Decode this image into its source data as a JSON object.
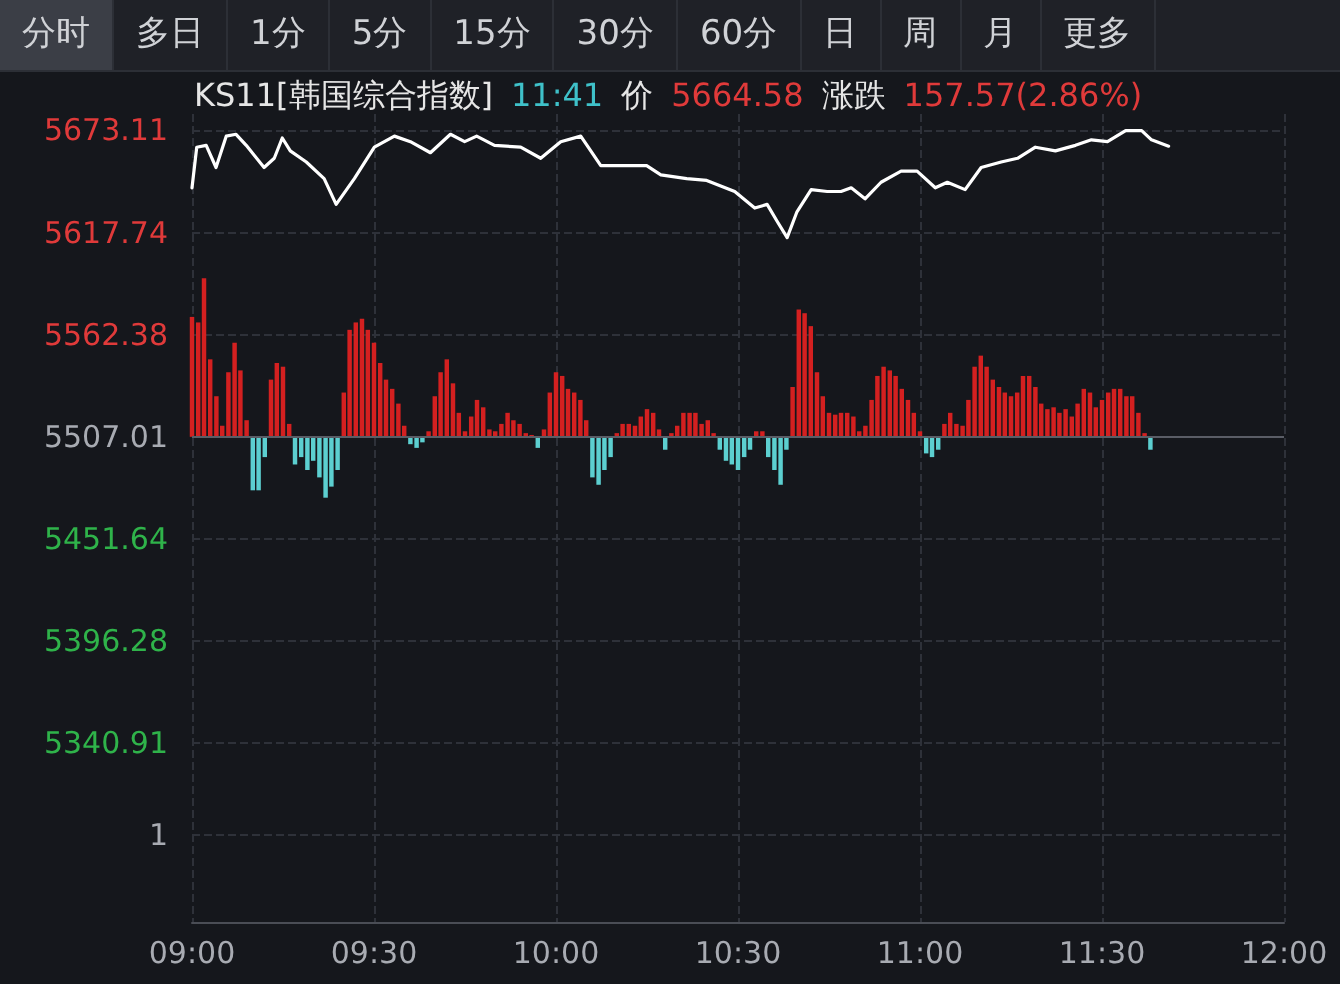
{
  "chart_data": {
    "type": "line",
    "title": "KS11[韩国综合指数]",
    "annotations": [
      "1",
      "分时",
      "多日",
      "1分",
      "5分",
      "15分",
      "30分",
      "60分",
      "日",
      "周",
      "月",
      "更多",
      "11:41",
      "价",
      "5664.58",
      "涨跌",
      "157.57(2.86%)"
    ],
    "xlim": [
      9,
      12
    ],
    "xticks": [
      {
        "value": 9,
        "label": "09:00"
      },
      {
        "value": 9.5,
        "label": "09:30"
      },
      {
        "value": 10,
        "label": "10:00"
      },
      {
        "value": 10.5,
        "label": "10:30"
      },
      {
        "value": 11,
        "label": "11:00"
      },
      {
        "value": 11.5,
        "label": "11:30"
      },
      {
        "value": 12,
        "label": "12:00"
      }
    ],
    "ylim": [
      5244,
      5682
    ],
    "yticks": [
      {
        "value": 5291,
        "label": null
      },
      5340.91,
      5396.28,
      5451.64,
      5507.01,
      5562.38,
      5617.74,
      5673.11
    ],
    "grid": true,
    "ref_lines": [
      {
        "axis": "y",
        "value": 5507.01,
        "color": "#5a5d66"
      }
    ],
    "series": [
      {
        "color": "#ffffff",
        "x": [
          9.0,
          9.013,
          9.039,
          9.066,
          9.094,
          9.121,
          9.149,
          9.198,
          9.226,
          9.248,
          9.27,
          9.314,
          9.363,
          9.396,
          9.446,
          9.501,
          9.556,
          9.6,
          9.655,
          9.71,
          9.749,
          9.782,
          9.831,
          9.903,
          9.958,
          10.013,
          10.068,
          10.123,
          10.194,
          10.249,
          10.288,
          10.359,
          10.414,
          10.491,
          10.546,
          10.58,
          10.607,
          10.635,
          10.662,
          10.701,
          10.745,
          10.783,
          10.811,
          10.849,
          10.893,
          10.948,
          10.992,
          11.042,
          11.075,
          11.124,
          11.168,
          11.223,
          11.268,
          11.317,
          11.372,
          11.427,
          11.471,
          11.515,
          11.565,
          11.609,
          11.636,
          11.683
        ],
        "values": [
          5642,
          5664,
          5665,
          5653,
          5670,
          5671,
          5665,
          5653,
          5658,
          5669,
          5662,
          5656,
          5647,
          5633,
          5647,
          5664,
          5670,
          5667,
          5661,
          5671,
          5667,
          5670,
          5665,
          5664,
          5658,
          5667,
          5670,
          5654,
          5654,
          5654,
          5649,
          5647,
          5646,
          5640,
          5631,
          5633,
          5624,
          5615,
          5629,
          5641,
          5640,
          5640,
          5642,
          5636,
          5645,
          5651,
          5651,
          5642,
          5645,
          5641,
          5653,
          5656,
          5658,
          5664,
          5662,
          5665,
          5668,
          5667,
          5673,
          5673,
          5668,
          5664.58
        ]
      },
      {
        "type": "bar",
        "x": [
          9,
          9.017,
          9.033,
          9.05,
          9.067,
          9.083,
          9.1,
          9.117,
          9.133,
          9.15,
          9.167,
          9.183,
          9.2,
          9.217,
          9.233,
          9.25,
          9.267,
          9.283,
          9.3,
          9.317,
          9.333,
          9.35,
          9.367,
          9.383,
          9.4,
          9.417,
          9.433,
          9.45,
          9.467,
          9.483,
          9.5,
          9.517,
          9.533,
          9.55,
          9.567,
          9.583,
          9.6,
          9.617,
          9.633,
          9.65,
          9.667,
          9.683,
          9.7,
          9.717,
          9.733,
          9.75,
          9.767,
          9.783,
          9.8,
          9.817,
          9.833,
          9.85,
          9.867,
          9.883,
          9.9,
          9.917,
          9.933,
          9.95,
          9.967,
          9.983,
          10,
          10.017,
          10.033,
          10.05,
          10.067,
          10.083,
          10.1,
          10.117,
          10.133,
          10.15,
          10.167,
          10.183,
          10.2,
          10.217,
          10.233,
          10.25,
          10.267,
          10.283,
          10.3,
          10.317,
          10.333,
          10.35,
          10.367,
          10.383,
          10.4,
          10.417,
          10.433,
          10.45,
          10.467,
          10.483,
          10.5,
          10.517,
          10.533,
          10.55,
          10.567,
          10.583,
          10.6,
          10.617,
          10.633,
          10.65,
          10.667,
          10.683,
          10.7,
          10.717,
          10.733,
          10.75,
          10.767,
          10.783,
          10.8,
          10.817,
          10.833,
          10.85,
          10.867,
          10.883,
          10.9,
          10.917,
          10.933,
          10.95,
          10.967,
          10.983,
          11,
          11.017,
          11.033,
          11.05,
          11.067,
          11.083,
          11.1,
          11.117,
          11.133,
          11.15,
          11.167,
          11.183,
          11.2,
          11.217,
          11.233,
          11.25,
          11.267,
          11.283,
          11.3,
          11.317,
          11.333,
          11.35,
          11.367,
          11.383,
          11.4,
          11.417,
          11.433,
          11.45,
          11.467,
          11.483,
          11.5,
          11.517,
          11.533,
          11.55,
          11.567,
          11.583,
          11.6,
          11.617,
          11.633
        ],
        "values": [
          65,
          62,
          86,
          42,
          22,
          6,
          35,
          51,
          36,
          9,
          -29,
          -29,
          -11,
          31,
          40,
          38,
          7,
          -15,
          -11,
          -18,
          -13,
          -22,
          -33,
          -27,
          -18,
          24,
          58,
          62,
          64,
          58,
          51,
          40,
          31,
          26,
          18,
          6,
          -4,
          -6,
          -3,
          3,
          22,
          35,
          42,
          29,
          13,
          3,
          11,
          20,
          16,
          4,
          3,
          7,
          13,
          9,
          7,
          2,
          1,
          -6,
          4,
          24,
          35,
          33,
          26,
          24,
          20,
          9,
          -22,
          -26,
          -18,
          -11,
          2,
          7,
          7,
          6,
          11,
          15,
          13,
          4,
          -7,
          2,
          6,
          13,
          13,
          13,
          7,
          9,
          2,
          -7,
          -13,
          -15,
          -18,
          -11,
          -7,
          3,
          3,
          -11,
          -18,
          -26,
          -7,
          27,
          69,
          67,
          60,
          35,
          22,
          13,
          12,
          13,
          13,
          11,
          3,
          6,
          20,
          33,
          38,
          36,
          33,
          26,
          20,
          13,
          3,
          -9,
          -11,
          -7,
          7,
          13,
          7,
          6,
          20,
          38,
          44,
          38,
          31,
          27,
          24,
          22,
          24,
          33,
          33,
          27,
          18,
          15,
          16,
          13,
          15,
          11,
          18,
          26,
          24,
          16,
          20,
          24,
          26,
          26,
          22,
          22,
          13,
          2,
          -7
        ],
        "base": [
          5507.01,
          5507.01,
          5507.01,
          5507.01,
          5507.01,
          5507.01,
          5507.01,
          5507.01,
          5507.01,
          5507.01,
          5507.01,
          5507.01,
          5507.01,
          5507.01,
          5507.01,
          5507.01,
          5507.01,
          5507.01,
          5507.01,
          5507.01,
          5507.01,
          5507.01,
          5507.01,
          5507.01,
          5507.01,
          5507.01,
          5507.01,
          5507.01,
          5507.01,
          5507.01,
          5507.01,
          5507.01,
          5507.01,
          5507.01,
          5507.01,
          5507.01,
          5507.01,
          5507.01,
          5507.01,
          5507.01,
          5507.01,
          5507.01,
          5507.01,
          5507.01,
          5507.01,
          5507.01,
          5507.01,
          5507.01,
          5507.01,
          5507.01,
          5507.01,
          5507.01,
          5507.01,
          5507.01,
          5507.01,
          5507.01,
          5507.01,
          5507.01,
          5507.01,
          5507.01,
          5507.01,
          5507.01,
          5507.01,
          5507.01,
          5507.01,
          5507.01,
          5507.01,
          5507.01,
          5507.01,
          5507.01,
          5507.01,
          5507.01,
          5507.01,
          5507.01,
          5507.01,
          5507.01,
          5507.01,
          5507.01,
          5507.01,
          5507.01,
          5507.01,
          5507.01,
          5507.01,
          5507.01,
          5507.01,
          5507.01,
          5507.01,
          5507.01,
          5507.01,
          5507.01,
          5507.01,
          5507.01,
          5507.01,
          5507.01,
          5507.01,
          5507.01,
          5507.01,
          5507.01,
          5507.01,
          5507.01,
          5507.01,
          5507.01,
          5507.01,
          5507.01,
          5507.01,
          5507.01,
          5507.01,
          5507.01,
          5507.01,
          5507.01,
          5507.01,
          5507.01,
          5507.01,
          5507.01,
          5507.01,
          5507.01,
          5507.01,
          5507.01,
          5507.01,
          5507.01,
          5507.01,
          5507.01,
          5507.01,
          5507.01,
          5507.01,
          5507.01,
          5507.01,
          5507.01,
          5507.01,
          5507.01,
          5507.01,
          5507.01,
          5507.01,
          5507.01,
          5507.01,
          5507.01,
          5507.01,
          5507.01,
          5507.01,
          5507.01,
          5507.01,
          5507.01,
          5507.01,
          5507.01,
          5507.01,
          5507.01,
          5507.01,
          5507.01,
          5507.01,
          5507.01,
          5507.01,
          5507.01,
          5507.01,
          5507.01,
          5507.01,
          5507.01,
          5507.01,
          5507.01,
          5507.01
        ],
        "colors": [
          "#d42020",
          "#d42020",
          "#d42020",
          "#d42020",
          "#d42020",
          "#d42020",
          "#d42020",
          "#d42020",
          "#d42020",
          "#d42020",
          "#5ccfd0",
          "#5ccfd0",
          "#5ccfd0",
          "#d42020",
          "#d42020",
          "#d42020",
          "#d42020",
          "#5ccfd0",
          "#5ccfd0",
          "#5ccfd0",
          "#5ccfd0",
          "#5ccfd0",
          "#5ccfd0",
          "#5ccfd0",
          "#5ccfd0",
          "#d42020",
          "#d42020",
          "#d42020",
          "#d42020",
          "#d42020",
          "#d42020",
          "#d42020",
          "#d42020",
          "#d42020",
          "#d42020",
          "#d42020",
          "#5ccfd0",
          "#5ccfd0",
          "#5ccfd0",
          "#d42020",
          "#d42020",
          "#d42020",
          "#d42020",
          "#d42020",
          "#d42020",
          "#d42020",
          "#d42020",
          "#d42020",
          "#d42020",
          "#d42020",
          "#d42020",
          "#d42020",
          "#d42020",
          "#d42020",
          "#d42020",
          "#d42020",
          "#d42020",
          "#5ccfd0",
          "#d42020",
          "#d42020",
          "#d42020",
          "#d42020",
          "#d42020",
          "#d42020",
          "#d42020",
          "#d42020",
          "#5ccfd0",
          "#5ccfd0",
          "#5ccfd0",
          "#5ccfd0",
          "#d42020",
          "#d42020",
          "#d42020",
          "#d42020",
          "#d42020",
          "#d42020",
          "#d42020",
          "#d42020",
          "#5ccfd0",
          "#d42020",
          "#d42020",
          "#d42020",
          "#d42020",
          "#d42020",
          "#d42020",
          "#d42020",
          "#d42020",
          "#5ccfd0",
          "#5ccfd0",
          "#5ccfd0",
          "#5ccfd0",
          "#5ccfd0",
          "#5ccfd0",
          "#d42020",
          "#d42020",
          "#5ccfd0",
          "#5ccfd0",
          "#5ccfd0",
          "#5ccfd0",
          "#d42020",
          "#d42020",
          "#d42020",
          "#d42020",
          "#d42020",
          "#d42020",
          "#d42020",
          "#d42020",
          "#d42020",
          "#d42020",
          "#d42020",
          "#d42020",
          "#d42020",
          "#d42020",
          "#d42020",
          "#d42020",
          "#d42020",
          "#d42020",
          "#d42020",
          "#d42020",
          "#d42020",
          "#d42020",
          "#5ccfd0",
          "#5ccfd0",
          "#5ccfd0",
          "#d42020",
          "#d42020",
          "#d42020",
          "#d42020",
          "#d42020",
          "#d42020",
          "#d42020",
          "#d42020",
          "#d42020",
          "#d42020",
          "#d42020",
          "#d42020",
          "#d42020",
          "#d42020",
          "#d42020",
          "#d42020",
          "#d42020",
          "#d42020",
          "#d42020",
          "#d42020",
          "#d42020",
          "#d42020",
          "#d42020",
          "#d42020",
          "#d42020",
          "#d42020",
          "#d42020",
          "#d42020",
          "#d42020",
          "#d42020",
          "#d42020",
          "#d42020",
          "#d42020",
          "#d42020",
          "#5ccfd0"
        ]
      }
    ]
  }
}
